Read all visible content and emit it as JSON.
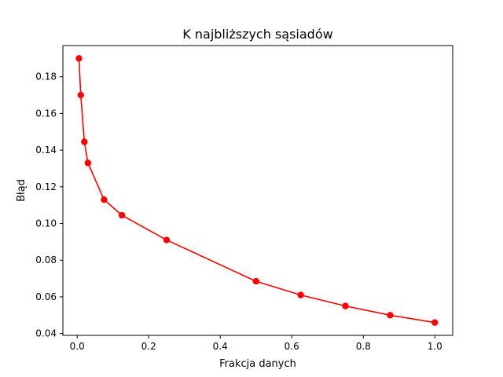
{
  "chart_data": {
    "type": "line",
    "title": "K najbliższych sąsiadów",
    "xlabel": "Frakcja danych",
    "ylabel": "Błąd",
    "xlim": [
      -0.04,
      1.05
    ],
    "ylim": [
      0.039,
      0.197
    ],
    "x_ticks": [
      0.0,
      0.2,
      0.4,
      0.6,
      0.8,
      1.0
    ],
    "x_tick_labels": [
      "0.0",
      "0.2",
      "0.4",
      "0.6",
      "0.8",
      "1.0"
    ],
    "y_ticks": [
      0.04,
      0.06,
      0.08,
      0.1,
      0.12,
      0.14,
      0.16,
      0.18
    ],
    "y_tick_labels": [
      "0.04",
      "0.06",
      "0.08",
      "0.10",
      "0.12",
      "0.14",
      "0.16",
      "0.18"
    ],
    "grid": false,
    "series": [
      {
        "color": "#ff0000",
        "marker": "circle",
        "x": [
          0.005,
          0.01,
          0.02,
          0.03,
          0.075,
          0.125,
          0.25,
          0.5,
          0.625,
          0.75,
          0.875,
          1.0
        ],
        "y": [
          0.19,
          0.17,
          0.1445,
          0.133,
          0.113,
          0.1045,
          0.091,
          0.0685,
          0.061,
          0.055,
          0.05,
          0.046
        ]
      }
    ]
  }
}
